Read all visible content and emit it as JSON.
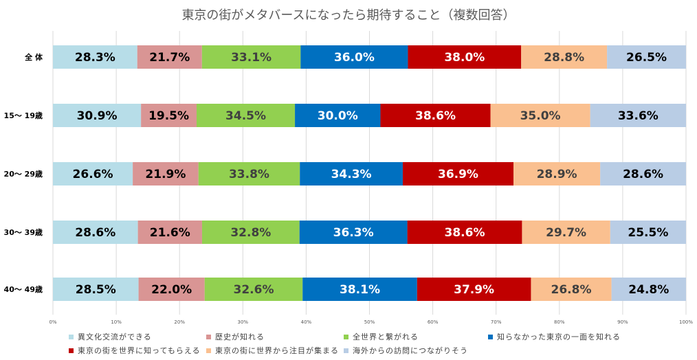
{
  "chart_data": {
    "type": "bar",
    "orientation": "horizontal",
    "stacked": "percent",
    "title": "東京の街がメタバースになったら期待すること（複数回答）",
    "categories": [
      "全 体",
      "15～ 19歳",
      "20～ 29歳",
      "30～ 39歳",
      "40～ 49歳"
    ],
    "xticks": [
      "0%",
      "10%",
      "20%",
      "30%",
      "40%",
      "50%",
      "60%",
      "70%",
      "80%",
      "90%",
      "100%"
    ],
    "xlim": [
      0,
      100
    ],
    "grid": true,
    "legend_position": "bottom",
    "series": [
      {
        "name": "異文化交流ができる",
        "color": "#b7dde8",
        "label_color": "#000000",
        "values": [
          28.3,
          30.9,
          26.6,
          28.6,
          28.5
        ],
        "labels": [
          "28.3%",
          "30.9%",
          "26.6%",
          "28.6%",
          "28.5%"
        ]
      },
      {
        "name": "歴史が知れる",
        "color": "#d99594",
        "label_color": "#000000",
        "values": [
          21.7,
          19.5,
          21.9,
          21.6,
          22.0
        ],
        "labels": [
          "21.7%",
          "19.5%",
          "21.9%",
          "21.6%",
          "22.0%"
        ]
      },
      {
        "name": "全世界と繋がれる",
        "color": "#92d050",
        "label_color": "#404040",
        "values": [
          33.1,
          34.5,
          33.8,
          32.8,
          32.6
        ],
        "labels": [
          "33.1%",
          "34.5%",
          "33.8%",
          "32.8%",
          "32.6%"
        ]
      },
      {
        "name": "知らなかった東京の一面を知れる",
        "color": "#0070c0",
        "label_color": "#ffffff",
        "values": [
          36.0,
          30.0,
          34.3,
          36.3,
          38.1
        ],
        "labels": [
          "36.0%",
          "30.0%",
          "34.3%",
          "36.3%",
          "38.1%"
        ]
      },
      {
        "name": "東京の街を世界に知ってもらえる",
        "color": "#c00000",
        "label_color": "#ffffff",
        "values": [
          38.0,
          38.6,
          36.9,
          38.6,
          37.9
        ],
        "labels": [
          "38.0%",
          "38.6%",
          "36.9%",
          "38.6%",
          "37.9%"
        ]
      },
      {
        "name": "東京の街に世界から注目が集まる",
        "color": "#fac090",
        "label_color": "#404040",
        "values": [
          28.8,
          35.0,
          28.9,
          29.7,
          26.8
        ],
        "labels": [
          "28.8%",
          "35.0%",
          "28.9%",
          "29.7%",
          "26.8%"
        ]
      },
      {
        "name": "海外からの訪問につながりそう",
        "color": "#b9cde5",
        "label_color": "#000000",
        "values": [
          26.5,
          33.6,
          28.6,
          25.5,
          24.8
        ],
        "labels": [
          "26.5%",
          "33.6%",
          "28.6%",
          "25.5%",
          "24.8%"
        ]
      }
    ]
  }
}
